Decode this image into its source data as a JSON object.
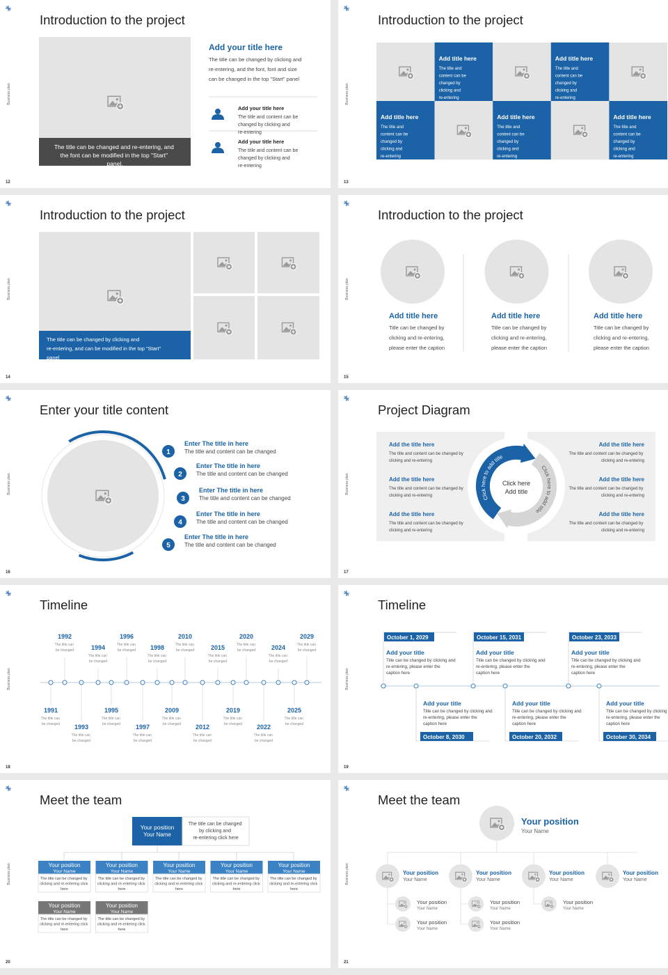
{
  "slides": [
    {
      "number": "12",
      "title": "Introduction to the project",
      "side_label": "Business plan",
      "caption": "The title can be changed and re-entering, and the font can be modified in the top \"Start\" panel.",
      "heading": "Add your title here",
      "body": "The title can be changed by clicking and re-entering, and the font, font and size can be changed in the top \"Start\" panel",
      "items": [
        {
          "title": "Add your title here",
          "text": "The title and content can be changed by clicking and re-entering"
        },
        {
          "title": "Add your title here",
          "text": "The title and content can be changed by clicking and re-entering"
        }
      ]
    },
    {
      "number": "13",
      "title": "Introduction to the project",
      "side_label": "Business plan",
      "tiles": [
        {
          "title": "Add title here",
          "text": "The title and content can be changed by clicking and re-entering"
        },
        {
          "title": "Add title here",
          "text": "The title and content can be changed by clicking and re-entering"
        },
        {
          "title": "Add title here",
          "text": "The title and content can be changed by clicking and re-entering"
        },
        {
          "title": "Add title here",
          "text": "The title and content can be changed by clicking and re-entering"
        },
        {
          "title": "Add title here",
          "text": "The title and content can be changed by clicking and re-entering"
        }
      ]
    },
    {
      "number": "14",
      "title": "Introduction to the project",
      "side_label": "Business plan",
      "caption": "The title can be changed by clicking and re-entering, and can be modified in the top \"Start\" panel"
    },
    {
      "number": "15",
      "title": "Introduction to the project",
      "side_label": "Business plan",
      "columns": [
        {
          "title": "Add title here",
          "text": "Title can be changed by clicking and re-entering, please enter the caption"
        },
        {
          "title": "Add title here",
          "text": "Title can be changed by clicking and re-entering, please enter the caption"
        },
        {
          "title": "Add title here",
          "text": "Title can be changed by clicking and re-entering, please enter the caption"
        }
      ]
    },
    {
      "number": "16",
      "title": "Enter your title content",
      "side_label": "Business plan",
      "items": [
        {
          "index": "1",
          "title": "Enter The title in here",
          "text": "The title and content can be changed"
        },
        {
          "index": "2",
          "title": "Enter The title in here",
          "text": "The title and content can be changed"
        },
        {
          "index": "3",
          "title": "Enter The title in here",
          "text": "The title and content can be changed"
        },
        {
          "index": "4",
          "title": "Enter The title in here",
          "text": "The title and content can be changed"
        },
        {
          "index": "5",
          "title": "Enter The title in here",
          "text": "The title and content can be changed"
        }
      ]
    },
    {
      "number": "17",
      "title": "Project Diagram",
      "side_label": "Business plan",
      "center": [
        "Click here",
        "Add title"
      ],
      "arc_left": "Click here to add title",
      "arc_right": "Click here to add title",
      "left": [
        {
          "title": "Add the title here",
          "text": "The title and content can be changed by clicking and re-entering"
        },
        {
          "title": "Add the title here",
          "text": "The title and content can be changed by clicking and re-entering"
        },
        {
          "title": "Add the title here",
          "text": "The title and content can be changed by clicking and re-entering"
        }
      ],
      "right": [
        {
          "title": "Add the title here",
          "text": "The title and content can be changed by clicking and re-entering"
        },
        {
          "title": "Add the title here",
          "text": "The title and content can be changed by clicking and re-entering"
        },
        {
          "title": "Add the title here",
          "text": "The title and content can be changed by clicking and re-entering"
        }
      ]
    },
    {
      "number": "18",
      "title": "Timeline",
      "side_label": "Business plan",
      "events": [
        {
          "year": "1991",
          "text": "The title can be changed"
        },
        {
          "year": "1992",
          "text": "The title can be changed"
        },
        {
          "year": "1993",
          "text": "The title can be changed"
        },
        {
          "year": "1994",
          "text": "The title can be changed"
        },
        {
          "year": "1995",
          "text": "The title can be changed"
        },
        {
          "year": "1996",
          "text": "The title can be changed"
        },
        {
          "year": "1997",
          "text": "The title can be changed"
        },
        {
          "year": "1998",
          "text": "The title can be changed"
        },
        {
          "year": "2009",
          "text": "The title can be changed"
        },
        {
          "year": "2010",
          "text": "The title can be changed"
        },
        {
          "year": "2012",
          "text": "The title can be changed"
        },
        {
          "year": "2015",
          "text": "The title can be changed"
        },
        {
          "year": "2019",
          "text": "The title can be changed"
        },
        {
          "year": "2020",
          "text": "The title can be changed"
        },
        {
          "year": "2022",
          "text": "The title can be changed"
        },
        {
          "year": "2024",
          "text": "The title can be changed"
        },
        {
          "year": "2025",
          "text": "The title can be changed"
        },
        {
          "year": "2029",
          "text": "The title can be changed"
        }
      ]
    },
    {
      "number": "19",
      "title": "Timeline",
      "side_label": "Business plan",
      "events": [
        {
          "date": "October 1, 2029",
          "title": "Add your title",
          "text": "Title can be changed by clicking and re-entering, please enter the caption here"
        },
        {
          "date": "October 8, 2030",
          "title": "Add your title",
          "text": "Title can be changed by clicking and re-entering, please enter the caption here"
        },
        {
          "date": "October 15, 2031",
          "title": "Add your title",
          "text": "Title can be changed by clicking and re-entering, please enter the caption here"
        },
        {
          "date": "October 20, 2032",
          "title": "Add your title",
          "text": "Title can be changed by clicking and re-entering, please enter the caption here"
        },
        {
          "date": "October 23, 2033",
          "title": "Add your title",
          "text": "Title can be changed by clicking and re-entering, please enter the caption here"
        },
        {
          "date": "October 30, 2034",
          "title": "Add your title",
          "text": "Title can be changed by clicking and re-entering, please enter the caption here"
        }
      ]
    },
    {
      "number": "20",
      "title": "Meet the team",
      "side_label": "Business plan",
      "head": {
        "position": "Your position",
        "name": "Your Name",
        "text": "The title can be changed by clicking and re-entering click here"
      },
      "members": [
        {
          "position": "Your position",
          "name": "Your Name",
          "text": "The title can be changed by clicking and re-entering click here"
        },
        {
          "position": "Your position",
          "name": "Your Name",
          "text": "The title can be changed by clicking and re-entering click here"
        },
        {
          "position": "Your position",
          "name": "Your Name",
          "text": "The title can be changed by clicking and re-entering click here"
        },
        {
          "position": "Your position",
          "name": "Your Name",
          "text": "The title can be changed by clicking and re-entering click here"
        },
        {
          "position": "Your position",
          "name": "Your Name",
          "text": "The title can be changed by clicking and re-entering click here"
        },
        {
          "position": "Your position",
          "name": "Your Name",
          "text": "The title can be changed by clicking and re-entering click here"
        },
        {
          "position": "Your position",
          "name": "Your Name",
          "text": "The title can be changed by clicking and re-entering click here"
        }
      ]
    },
    {
      "number": "21",
      "title": "Meet the team",
      "side_label": "Business plan",
      "head": {
        "position": "Your position",
        "name": "Your Name"
      },
      "managers": [
        {
          "position": "Your position",
          "name": "Your Name"
        },
        {
          "position": "Your position",
          "name": "Your Name"
        },
        {
          "position": "Your position",
          "name": "Your Name"
        },
        {
          "position": "Your position",
          "name": "Your Name"
        }
      ],
      "staff": [
        {
          "position": "Your position",
          "name": "Your Name"
        },
        {
          "position": "Your position",
          "name": "Your Name"
        },
        {
          "position": "Your position",
          "name": "Your Name"
        },
        {
          "position": "Your position",
          "name": "Your Name"
        },
        {
          "position": "Your position",
          "name": "Your Name"
        }
      ]
    }
  ]
}
